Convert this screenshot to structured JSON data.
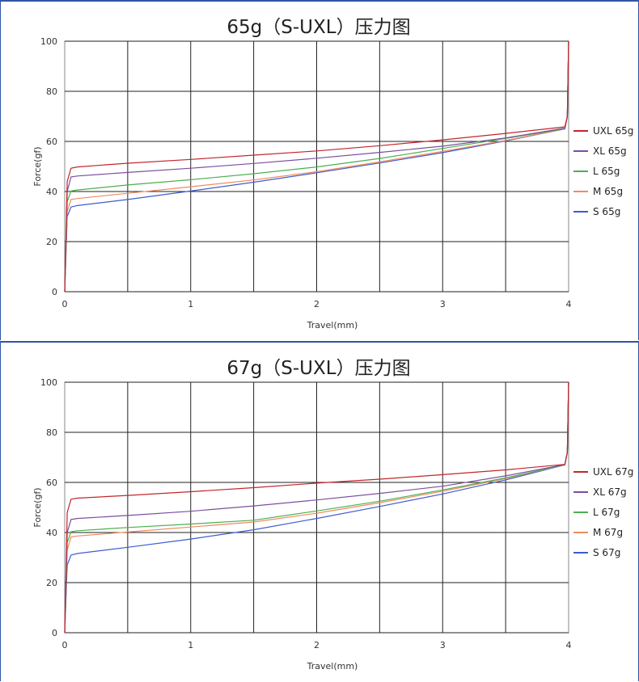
{
  "chart_data": [
    {
      "type": "line",
      "title": "65g（S-UXL）压力图",
      "xlabel": "Travel(mm)",
      "ylabel": "Force(gf)",
      "xlim": [
        0,
        4
      ],
      "ylim": [
        0,
        100
      ],
      "xticks": [
        "0",
        "1",
        "2",
        "3",
        "4"
      ],
      "yticks": [
        "0",
        "20",
        "40",
        "60",
        "80",
        "100"
      ],
      "grid": true,
      "legend_position": "right",
      "series": [
        {
          "name": "UXL 65g",
          "color": "#c0272d",
          "x": [
            0,
            0.02,
            0.05,
            0.1,
            0.5,
            1,
            1.5,
            2,
            2.5,
            3,
            3.5,
            3.97,
            3.99,
            4
          ],
          "y": [
            0,
            44,
            49.3,
            49.8,
            51.3,
            52.8,
            54.5,
            56.2,
            58.3,
            60.6,
            63.2,
            65.8,
            70,
            100
          ]
        },
        {
          "name": "XL 65g",
          "color": "#7b4fa0",
          "x": [
            0,
            0.02,
            0.05,
            0.1,
            0.5,
            1,
            1.5,
            2,
            2.5,
            3,
            3.5,
            3.97,
            3.99,
            4
          ],
          "y": [
            0,
            40,
            45.8,
            46.2,
            47.6,
            49.3,
            51.2,
            53.3,
            55.6,
            58.1,
            61.4,
            65.3,
            70,
            100
          ]
        },
        {
          "name": "L 65g",
          "color": "#4caf50",
          "x": [
            0,
            0.02,
            0.05,
            0.1,
            0.5,
            1,
            1.5,
            2,
            2.5,
            3,
            3.5,
            3.97,
            3.99,
            4
          ],
          "y": [
            0,
            36,
            40.2,
            40.6,
            42.6,
            44.7,
            47.1,
            49.8,
            53.2,
            57.2,
            61.2,
            65.0,
            70,
            100
          ]
        },
        {
          "name": "M 65g",
          "color": "#f08a5d",
          "x": [
            0,
            0.02,
            0.05,
            0.1,
            0.5,
            1,
            1.5,
            2,
            2.5,
            3,
            3.5,
            3.97,
            3.99,
            4
          ],
          "y": [
            0,
            32,
            36.8,
            37.2,
            39.3,
            41.9,
            44.6,
            47.9,
            51.8,
            56.0,
            60.4,
            65.0,
            70,
            100
          ]
        },
        {
          "name": "S 65g",
          "color": "#3f5bd0",
          "x": [
            0,
            0.02,
            0.05,
            0.1,
            0.5,
            1,
            1.5,
            2,
            2.5,
            3,
            3.5,
            3.97,
            3.99,
            4
          ],
          "y": [
            0,
            30,
            33.8,
            34.4,
            36.8,
            40.2,
            43.7,
            47.5,
            51.4,
            55.5,
            60.2,
            65.0,
            70,
            100
          ]
        }
      ]
    },
    {
      "type": "line",
      "title": "67g（S-UXL）压力图",
      "xlabel": "Travel(mm)",
      "ylabel": "Force(gf)",
      "xlim": [
        0,
        4
      ],
      "ylim": [
        0,
        100
      ],
      "xticks": [
        "0",
        "1",
        "2",
        "3",
        "4"
      ],
      "yticks": [
        "0",
        "20",
        "40",
        "60",
        "80",
        "100"
      ],
      "grid": true,
      "legend_position": "right",
      "series": [
        {
          "name": "UXL 67g",
          "color": "#c0272d",
          "x": [
            0,
            0.02,
            0.05,
            0.1,
            0.5,
            1,
            1.5,
            2,
            2.5,
            3,
            3.5,
            3.97,
            3.99,
            4
          ],
          "y": [
            0,
            48,
            53.3,
            53.7,
            54.8,
            56.3,
            57.9,
            59.7,
            61.3,
            63.1,
            65.0,
            67.2,
            72,
            100
          ]
        },
        {
          "name": "XL 67g",
          "color": "#7b4fa0",
          "x": [
            0,
            0.02,
            0.05,
            0.1,
            0.5,
            1,
            1.5,
            2,
            2.5,
            3,
            3.5,
            3.97,
            3.99,
            4
          ],
          "y": [
            0,
            40,
            45.2,
            45.6,
            46.8,
            48.5,
            50.6,
            53.0,
            55.6,
            58.5,
            62.6,
            67.1,
            72,
            100
          ]
        },
        {
          "name": "L 67g",
          "color": "#4caf50",
          "x": [
            0,
            0.02,
            0.05,
            0.1,
            0.5,
            1,
            1.5,
            2,
            2.5,
            3,
            3.5,
            3.97,
            3.99,
            4
          ],
          "y": [
            0,
            36,
            40.3,
            40.7,
            42.0,
            43.4,
            44.9,
            48.6,
            52.5,
            57.0,
            61.8,
            67.0,
            72,
            100
          ]
        },
        {
          "name": "M 67g",
          "color": "#f08a5d",
          "x": [
            0,
            0.02,
            0.05,
            0.1,
            0.5,
            1,
            1.5,
            2,
            2.5,
            3,
            3.5,
            3.97,
            3.99,
            4
          ],
          "y": [
            0,
            33,
            38.2,
            38.6,
            40.2,
            42.2,
            44.2,
            47.7,
            51.9,
            56.5,
            61.5,
            67.0,
            72,
            100
          ]
        },
        {
          "name": "S 67g",
          "color": "#3f5bd0",
          "x": [
            0,
            0.02,
            0.05,
            0.1,
            0.5,
            1,
            1.5,
            2,
            2.5,
            3,
            3.5,
            3.97,
            3.99,
            4
          ],
          "y": [
            0,
            27,
            31.0,
            31.6,
            34.1,
            37.4,
            41.1,
            45.6,
            50.4,
            55.4,
            61.0,
            67.0,
            72,
            100
          ]
        }
      ]
    }
  ]
}
